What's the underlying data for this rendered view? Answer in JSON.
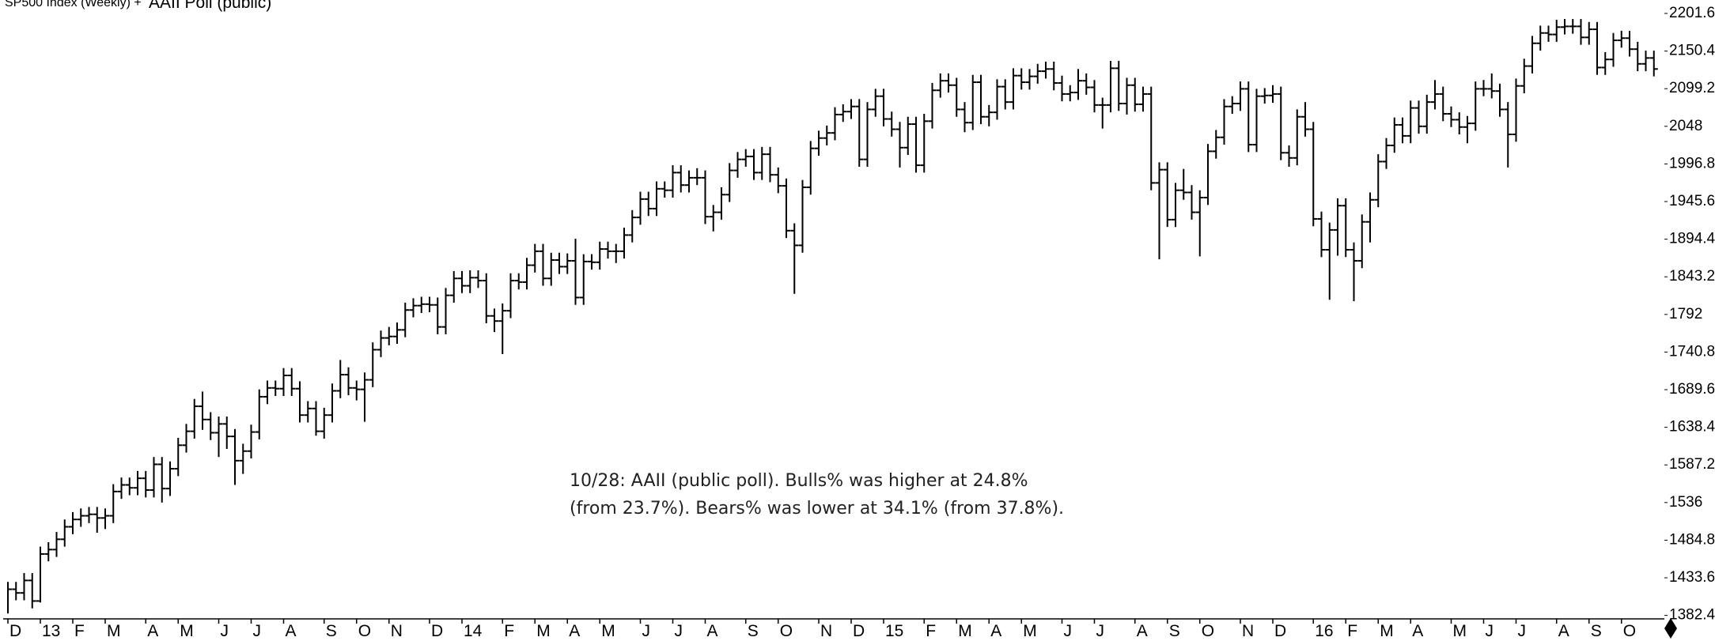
{
  "chart_data": {
    "type": "ohlc",
    "title": "SP500 Index (Weekly) +",
    "subtitle": "AAII Poll  (public)",
    "annotation": [
      "10/28: AAII (public poll). Bulls% was higher at 24.8%",
      "(from 23.7%). Bears% was lower at 34.1% (from 37.8%)."
    ],
    "color": "#000000",
    "ylim": [
      1377.7,
      2219.9
    ],
    "yticks": [
      1382.4,
      1433.6,
      1484.8,
      1536,
      1587.2,
      1638.4,
      1689.6,
      1740.8,
      1792,
      1843.2,
      1894.4,
      1945.6,
      1996.8,
      2048,
      2099.2,
      2150.4,
      2201.6
    ],
    "categories": [
      "D",
      null,
      null,
      null,
      "13",
      null,
      null,
      null,
      "F",
      null,
      null,
      null,
      "M",
      null,
      null,
      null,
      null,
      "A",
      null,
      null,
      null,
      "M",
      null,
      null,
      null,
      null,
      "J",
      null,
      null,
      null,
      "J",
      null,
      null,
      null,
      "A",
      null,
      null,
      null,
      null,
      "S",
      null,
      null,
      null,
      "O",
      null,
      null,
      null,
      "N",
      null,
      null,
      null,
      null,
      "D",
      null,
      null,
      null,
      "14",
      null,
      null,
      null,
      null,
      "F",
      null,
      null,
      null,
      "M",
      null,
      null,
      null,
      "A",
      null,
      null,
      null,
      "M",
      null,
      null,
      null,
      null,
      "J",
      null,
      null,
      null,
      "J",
      null,
      null,
      null,
      "A",
      null,
      null,
      null,
      null,
      "S",
      null,
      null,
      null,
      "O",
      null,
      null,
      null,
      null,
      "N",
      null,
      null,
      null,
      "D",
      null,
      null,
      null,
      "15",
      null,
      null,
      null,
      null,
      "F",
      null,
      null,
      null,
      "M",
      null,
      null,
      null,
      "A",
      null,
      null,
      null,
      "M",
      null,
      null,
      null,
      null,
      "J",
      null,
      null,
      null,
      "J",
      null,
      null,
      null,
      null,
      "A",
      null,
      null,
      null,
      "S",
      null,
      null,
      null,
      "O",
      null,
      null,
      null,
      null,
      "N",
      null,
      null,
      null,
      "D",
      null,
      null,
      null,
      null,
      "16",
      null,
      null,
      null,
      "F",
      null,
      null,
      null,
      "M",
      null,
      null,
      null,
      "A",
      null,
      null,
      null,
      null,
      "M",
      null,
      null,
      null,
      "J",
      null,
      null,
      null,
      "J",
      null,
      null,
      null,
      null,
      "A",
      null,
      null,
      null,
      "S",
      null,
      null,
      null,
      "O",
      null,
      null,
      null,
      null
    ],
    "close": [
      1418,
      1413,
      1430,
      1402,
      1466,
      1472,
      1486,
      1503,
      1513,
      1518,
      1520,
      1515,
      1518,
      1551,
      1560,
      1556,
      1569,
      1553,
      1588,
      1555,
      1582,
      1614,
      1633,
      1667,
      1649,
      1631,
      1643,
      1626,
      1593,
      1606,
      1632,
      1680,
      1692,
      1691,
      1709,
      1691,
      1655,
      1664,
      1633,
      1655,
      1688,
      1710,
      1692,
      1690,
      1703,
      1744,
      1760,
      1762,
      1771,
      1798,
      1804,
      1806,
      1805,
      1775,
      1818,
      1841,
      1831,
      1842,
      1838,
      1790,
      1783,
      1797,
      1838,
      1836,
      1859,
      1878,
      1841,
      1866,
      1857,
      1865,
      1815,
      1864,
      1863,
      1881,
      1878,
      1878,
      1900,
      1924,
      1949,
      1936,
      1963,
      1961,
      1985,
      1968,
      1978,
      1978,
      1925,
      1931,
      1955,
      1988,
      2003,
      2007,
      1985,
      2010,
      1982,
      1967,
      1906,
      1886,
      1965,
      2018,
      2032,
      2039,
      2064,
      2068,
      2075,
      2003,
      2071,
      2089,
      2058,
      2044,
      2019,
      2051,
      1995,
      2055,
      2097,
      2110,
      2104,
      2071,
      2053,
      2108,
      2061,
      2067,
      2102,
      2081,
      2117,
      2108,
      2116,
      2123,
      2126,
      2107,
      2092,
      2094,
      2110,
      2101,
      2077,
      2077,
      2127,
      2079,
      2104,
      2078,
      2092,
      1971,
      1989,
      1921,
      1961,
      1958,
      1931,
      1951,
      2014,
      2033,
      2075,
      2079,
      2099,
      2023,
      2089,
      2090,
      2092,
      2012,
      2005,
      2061,
      2044,
      1922,
      1880,
      1907,
      1940,
      1880,
      1865,
      1918,
      1948,
      2000,
      2022,
      2050,
      2035,
      2073,
      2048,
      2081,
      2092,
      2065,
      2057,
      2047,
      2052,
      2099,
      2099,
      2096,
      2071,
      2037,
      2103,
      2130,
      2161,
      2175,
      2173,
      2183,
      2184,
      2184,
      2169,
      2180,
      2128,
      2139,
      2165,
      2168,
      2153,
      2133,
      2141,
      2126
    ],
    "high": [
      1428,
      1428,
      1440,
      1440,
      1476,
      1482,
      1496,
      1513,
      1523,
      1528,
      1530,
      1530,
      1528,
      1561,
      1570,
      1570,
      1579,
      1579,
      1598,
      1598,
      1592,
      1624,
      1643,
      1677,
      1687,
      1659,
      1653,
      1653,
      1636,
      1616,
      1642,
      1690,
      1702,
      1702,
      1719,
      1719,
      1701,
      1674,
      1674,
      1665,
      1698,
      1730,
      1720,
      1702,
      1713,
      1754,
      1770,
      1775,
      1781,
      1808,
      1814,
      1816,
      1816,
      1815,
      1828,
      1851,
      1851,
      1852,
      1852,
      1848,
      1800,
      1807,
      1848,
      1848,
      1869,
      1888,
      1888,
      1876,
      1876,
      1875,
      1895,
      1874,
      1874,
      1891,
      1891,
      1888,
      1910,
      1934,
      1959,
      1959,
      1973,
      1973,
      1995,
      1995,
      1988,
      1991,
      1988,
      1941,
      1965,
      1998,
      2013,
      2017,
      2017,
      2020,
      2020,
      1992,
      1977,
      1916,
      1975,
      2028,
      2042,
      2049,
      2074,
      2078,
      2085,
      2085,
      2081,
      2099,
      2099,
      2068,
      2054,
      2061,
      2061,
      2065,
      2107,
      2120,
      2120,
      2114,
      2081,
      2118,
      2118,
      2077,
      2112,
      2112,
      2127,
      2127,
      2126,
      2133,
      2136,
      2136,
      2117,
      2104,
      2126,
      2120,
      2111,
      2087,
      2137,
      2137,
      2114,
      2114,
      2102,
      2102,
      1999,
      1999,
      1971,
      1990,
      1968,
      1961,
      2024,
      2043,
      2085,
      2089,
      2109,
      2109,
      2099,
      2100,
      2104,
      2102,
      2022,
      2071,
      2081,
      2054,
      1932,
      1917,
      1950,
      1950,
      1890,
      1928,
      1958,
      2010,
      2032,
      2060,
      2060,
      2083,
      2083,
      2091,
      2111,
      2102,
      2075,
      2067,
      2062,
      2109,
      2111,
      2120,
      2106,
      2081,
      2113,
      2140,
      2171,
      2185,
      2185,
      2193,
      2194,
      2194,
      2194,
      2190,
      2190,
      2149,
      2175,
      2178,
      2178,
      2163,
      2151,
      2151
    ],
    "low": [
      1385,
      1403,
      1403,
      1392,
      1400,
      1456,
      1462,
      1476,
      1493,
      1503,
      1508,
      1495,
      1500,
      1508,
      1541,
      1546,
      1546,
      1543,
      1543,
      1536,
      1545,
      1572,
      1604,
      1623,
      1635,
      1621,
      1598,
      1609,
      1560,
      1575,
      1596,
      1622,
      1670,
      1681,
      1681,
      1681,
      1645,
      1645,
      1627,
      1623,
      1645,
      1678,
      1682,
      1675,
      1646,
      1693,
      1734,
      1750,
      1752,
      1761,
      1788,
      1794,
      1795,
      1765,
      1765,
      1808,
      1821,
      1821,
      1828,
      1780,
      1768,
      1738,
      1787,
      1826,
      1826,
      1849,
      1831,
      1831,
      1847,
      1847,
      1805,
      1805,
      1853,
      1853,
      1868,
      1862,
      1868,
      1890,
      1914,
      1926,
      1926,
      1951,
      1951,
      1958,
      1958,
      1968,
      1915,
      1905,
      1921,
      1945,
      1978,
      1993,
      1975,
      1975,
      1972,
      1957,
      1896,
      1820,
      1876,
      1955,
      2008,
      2022,
      2029,
      2054,
      2058,
      1993,
      1993,
      2061,
      2048,
      2034,
      1992,
      2009,
      1985,
      1985,
      2045,
      2087,
      2094,
      2061,
      2040,
      2043,
      2051,
      2048,
      2057,
      2071,
      2071,
      2098,
      2098,
      2106,
      2113,
      2097,
      2082,
      2082,
      2084,
      2091,
      2067,
      2045,
      2067,
      2069,
      2064,
      2068,
      2068,
      1961,
      1867,
      1911,
      1911,
      1948,
      1921,
      1871,
      1941,
      2004,
      2023,
      2065,
      2069,
      2013,
      2013,
      2079,
      2080,
      2002,
      1993,
      1995,
      2034,
      1912,
      1870,
      1812,
      1872,
      1870,
      1810,
      1855,
      1890,
      1938,
      1990,
      2012,
      2025,
      2025,
      2038,
      2038,
      2071,
      2055,
      2047,
      2037,
      2025,
      2042,
      2089,
      2086,
      2061,
      1992,
      2027,
      2093,
      2120,
      2151,
      2163,
      2163,
      2173,
      2174,
      2159,
      2159,
      2118,
      2118,
      2129,
      2155,
      2143,
      2123,
      2123,
      2116
    ]
  }
}
